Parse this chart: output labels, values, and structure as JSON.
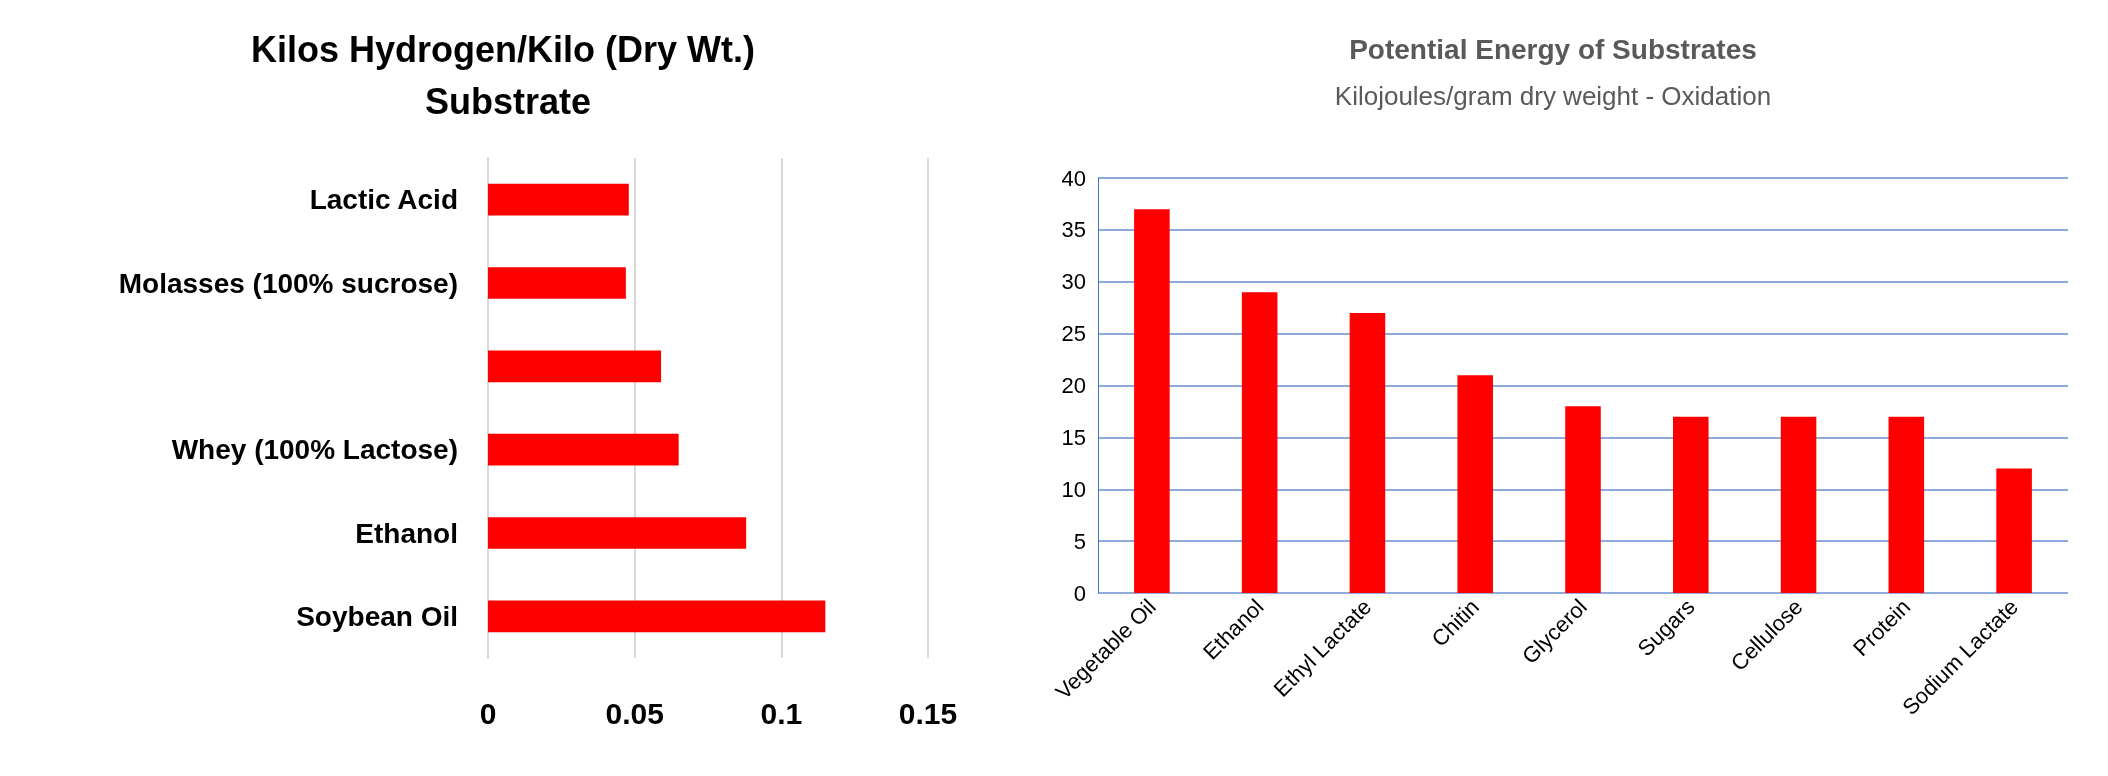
{
  "chart_data": [
    {
      "type": "bar",
      "orientation": "horizontal",
      "title": "Kilos Hydrogen/Kilo (Dry Wt.) Substrate",
      "categories": [
        "Lactic Acid",
        "Molasses (100% sucrose)",
        null,
        "Whey (100% Lactose)",
        "Ethanol",
        "Soybean Oil"
      ],
      "values": [
        0.048,
        0.047,
        0.059,
        0.065,
        0.088,
        0.115
      ],
      "color": "#ff0000",
      "xlim": [
        0,
        0.15
      ],
      "xticks": [
        0,
        0.05,
        0.1,
        0.15
      ],
      "grid": "x"
    },
    {
      "type": "bar",
      "title": "Potential Energy of Substrates",
      "subtitle": "Kilojoules/gram dry weight - Oxidation",
      "categories": [
        "Vegetable Oil",
        "Ethanol",
        "Ethyl Lactate",
        "Chitin",
        "Glycerol",
        "Sugars",
        "Cellulose",
        "Protein",
        "Sodium Lactate"
      ],
      "values": [
        37,
        29,
        27,
        21,
        18,
        17,
        17,
        17,
        12
      ],
      "color": "#ff0000",
      "ylim": [
        0,
        40
      ],
      "yticks": [
        0,
        5,
        10,
        15,
        20,
        25,
        30,
        35,
        40
      ],
      "grid": "y"
    }
  ]
}
